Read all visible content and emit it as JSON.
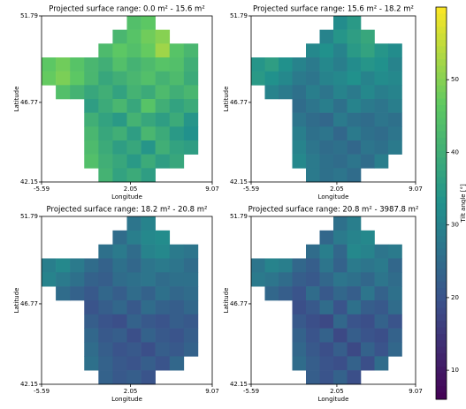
{
  "chart_data": [
    {
      "type": "heatmap",
      "title": "Projected surface range: 0.0 m² - 15.6 m²",
      "xlabel": "Longitude",
      "ylabel": "Latitude",
      "xlim": [
        -5.59,
        9.07
      ],
      "xticks": [
        -5.59,
        2.05,
        9.07
      ],
      "ylim": [
        42.15,
        51.79
      ],
      "yticks": [
        42.15,
        46.77,
        51.79
      ],
      "values": [
        [
          null,
          null,
          null,
          null,
          null,
          null,
          44,
          46,
          null,
          null,
          null,
          null
        ],
        [
          null,
          null,
          null,
          null,
          null,
          42,
          45,
          48,
          50,
          null,
          null,
          null
        ],
        [
          null,
          null,
          null,
          null,
          43,
          46,
          44,
          47,
          52,
          45,
          42,
          null
        ],
        [
          46,
          48,
          45,
          42,
          40,
          44,
          41,
          43,
          45,
          44,
          40,
          null
        ],
        [
          47,
          49,
          46,
          42,
          38,
          40,
          42,
          44,
          41,
          43,
          39,
          null
        ],
        [
          null,
          44,
          41,
          38,
          40,
          37,
          41,
          39,
          43,
          40,
          42,
          null
        ],
        [
          null,
          null,
          null,
          36,
          39,
          42,
          38,
          45,
          40,
          37,
          39,
          null
        ],
        [
          null,
          null,
          null,
          40,
          37,
          35,
          41,
          38,
          36,
          39,
          34,
          null
        ],
        [
          null,
          null,
          null,
          42,
          38,
          40,
          36,
          42,
          39,
          35,
          33,
          null
        ],
        [
          null,
          null,
          null,
          43,
          39,
          36,
          38,
          34,
          40,
          37,
          36,
          null
        ],
        [
          null,
          null,
          null,
          44,
          40,
          38,
          35,
          39,
          36,
          38,
          null,
          null
        ],
        [
          null,
          null,
          null,
          null,
          41,
          37,
          39,
          36,
          null,
          null,
          null,
          null
        ]
      ]
    },
    {
      "type": "heatmap",
      "title": "Projected surface range: 15.6 m² - 18.2 m²",
      "xlabel": "Longitude",
      "ylabel": "Latitude",
      "xlim": [
        -5.59,
        9.07
      ],
      "xticks": [
        -5.59,
        2.05,
        9.07
      ],
      "ylim": [
        42.15,
        51.79
      ],
      "yticks": [
        42.15,
        46.77,
        51.79
      ],
      "values": [
        [
          null,
          null,
          null,
          null,
          null,
          null,
          32,
          35,
          null,
          null,
          null,
          null
        ],
        [
          null,
          null,
          null,
          null,
          null,
          30,
          34,
          36,
          38,
          null,
          null,
          null
        ],
        [
          null,
          null,
          null,
          null,
          31,
          33,
          30,
          35,
          37,
          34,
          32,
          null
        ],
        [
          34,
          36,
          33,
          30,
          28,
          31,
          29,
          32,
          34,
          33,
          30,
          null
        ],
        [
          35,
          33,
          31,
          28,
          27,
          30,
          31,
          33,
          30,
          32,
          31,
          null
        ],
        [
          null,
          30,
          28,
          26,
          29,
          27,
          30,
          28,
          31,
          29,
          30,
          null
        ],
        [
          null,
          null,
          null,
          25,
          27,
          29,
          26,
          30,
          28,
          27,
          29,
          null
        ],
        [
          null,
          null,
          null,
          27,
          25,
          24,
          28,
          26,
          25,
          27,
          26,
          null
        ],
        [
          null,
          null,
          null,
          29,
          26,
          27,
          24,
          28,
          26,
          25,
          27,
          null
        ],
        [
          null,
          null,
          null,
          30,
          27,
          25,
          26,
          24,
          27,
          26,
          28,
          null
        ],
        [
          null,
          null,
          null,
          31,
          28,
          26,
          25,
          27,
          25,
          29,
          null,
          null
        ],
        [
          null,
          null,
          null,
          null,
          28,
          26,
          27,
          25,
          null,
          null,
          null,
          null
        ]
      ]
    },
    {
      "type": "heatmap",
      "title": "Projected surface range: 18.2 m² - 20.8 m²",
      "xlabel": "Longitude",
      "ylabel": "Latitude",
      "xlim": [
        -5.59,
        9.07
      ],
      "xticks": [
        -5.59,
        2.05,
        9.07
      ],
      "ylim": [
        42.15,
        51.79
      ],
      "yticks": [
        42.15,
        46.77,
        51.79
      ],
      "values": [
        [
          null,
          null,
          null,
          null,
          null,
          null,
          27,
          30,
          null,
          null,
          null,
          null
        ],
        [
          null,
          null,
          null,
          null,
          null,
          25,
          29,
          31,
          32,
          null,
          null,
          null
        ],
        [
          null,
          null,
          null,
          null,
          26,
          28,
          25,
          30,
          31,
          28,
          27,
          null
        ],
        [
          29,
          31,
          28,
          25,
          23,
          26,
          24,
          27,
          28,
          27,
          25,
          null
        ],
        [
          30,
          28,
          26,
          23,
          22,
          25,
          26,
          27,
          25,
          26,
          26,
          null
        ],
        [
          null,
          25,
          23,
          21,
          24,
          22,
          25,
          23,
          26,
          24,
          25,
          null
        ],
        [
          null,
          null,
          null,
          20,
          22,
          24,
          21,
          25,
          23,
          22,
          24,
          null
        ],
        [
          null,
          null,
          null,
          22,
          20,
          19,
          23,
          21,
          20,
          22,
          21,
          null
        ],
        [
          null,
          null,
          null,
          24,
          21,
          22,
          19,
          23,
          21,
          20,
          22,
          null
        ],
        [
          null,
          null,
          null,
          25,
          22,
          20,
          21,
          19,
          22,
          21,
          23,
          null
        ],
        [
          null,
          null,
          null,
          26,
          23,
          21,
          20,
          22,
          20,
          24,
          null,
          null
        ],
        [
          null,
          null,
          null,
          null,
          23,
          21,
          22,
          20,
          null,
          null,
          null,
          null
        ]
      ]
    },
    {
      "type": "heatmap",
      "title": "Projected surface range: 20.8 m² - 3987.8 m²",
      "xlabel": "Longitude",
      "ylabel": "Latitude",
      "xlim": [
        -5.59,
        9.07
      ],
      "xticks": [
        -5.59,
        2.05,
        9.07
      ],
      "ylim": [
        42.15,
        51.79
      ],
      "yticks": [
        42.15,
        46.77,
        51.79
      ],
      "values": [
        [
          null,
          null,
          null,
          null,
          null,
          null,
          26,
          29,
          null,
          null,
          null,
          null
        ],
        [
          null,
          null,
          null,
          null,
          null,
          24,
          28,
          30,
          31,
          null,
          null,
          null
        ],
        [
          null,
          null,
          null,
          null,
          25,
          29,
          24,
          31,
          30,
          27,
          28,
          null
        ],
        [
          27,
          30,
          29,
          24,
          22,
          27,
          23,
          28,
          27,
          28,
          24,
          null
        ],
        [
          28,
          27,
          25,
          22,
          21,
          24,
          27,
          26,
          24,
          27,
          25,
          null
        ],
        [
          null,
          24,
          22,
          20,
          25,
          21,
          24,
          22,
          27,
          23,
          26,
          null
        ],
        [
          null,
          null,
          null,
          19,
          21,
          25,
          20,
          26,
          22,
          21,
          25,
          null
        ],
        [
          null,
          null,
          null,
          21,
          19,
          18,
          24,
          20,
          19,
          23,
          20,
          null
        ],
        [
          null,
          null,
          null,
          23,
          20,
          23,
          18,
          22,
          20,
          19,
          23,
          null
        ],
        [
          null,
          null,
          null,
          24,
          21,
          19,
          22,
          18,
          23,
          20,
          24,
          null
        ],
        [
          null,
          null,
          null,
          25,
          22,
          20,
          19,
          23,
          19,
          25,
          null,
          null
        ],
        [
          null,
          null,
          null,
          null,
          22,
          20,
          23,
          19,
          null,
          null,
          null,
          null
        ]
      ]
    },
    {
      "type": "colorbar",
      "label": "Tilt angle [°]",
      "ylim": [
        6,
        60
      ],
      "yticks": [
        10,
        20,
        30,
        40,
        50
      ]
    }
  ]
}
